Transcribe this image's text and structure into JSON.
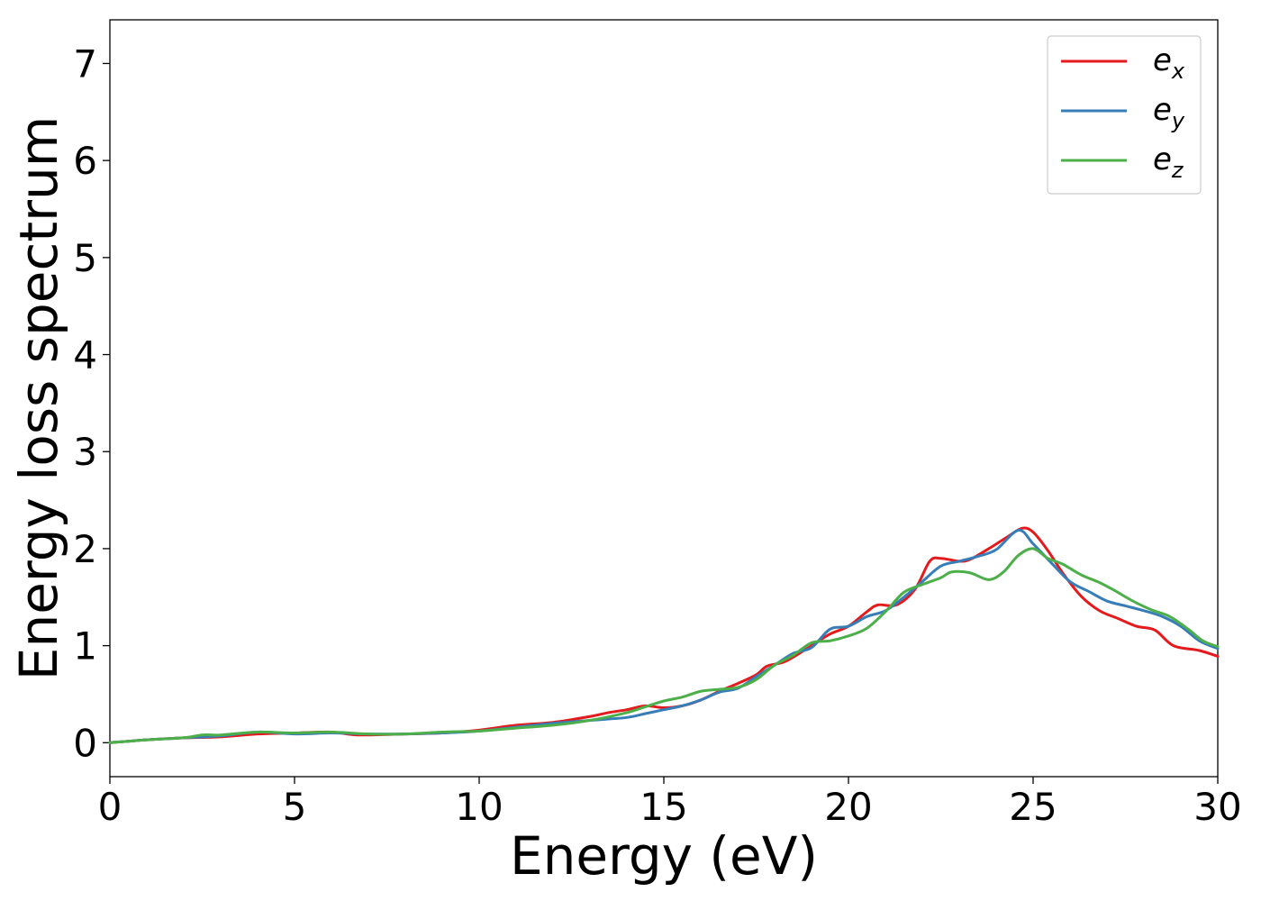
{
  "chart_data": {
    "type": "line",
    "title": "",
    "xlabel": "Energy (eV)",
    "ylabel": "Energy loss spectrum",
    "xlim": [
      0,
      30
    ],
    "ylim": [
      -0.35,
      7.45
    ],
    "xticks": [
      0,
      5,
      10,
      15,
      20,
      25,
      30
    ],
    "yticks": [
      0,
      1,
      2,
      3,
      4,
      5,
      6,
      7
    ],
    "grid": false,
    "legend_position": "top-right",
    "series": [
      {
        "name": "e_x",
        "label_base": "e",
        "label_sub": "x",
        "color": "#e41a1c",
        "points": [
          [
            0,
            0
          ],
          [
            1,
            0.03
          ],
          [
            2,
            0.05
          ],
          [
            3,
            0.06
          ],
          [
            4,
            0.09
          ],
          [
            5,
            0.1
          ],
          [
            6,
            0.11
          ],
          [
            6.7,
            0.08
          ],
          [
            8,
            0.09
          ],
          [
            9,
            0.1
          ],
          [
            10,
            0.13
          ],
          [
            11,
            0.18
          ],
          [
            12,
            0.21
          ],
          [
            13,
            0.27
          ],
          [
            13.5,
            0.31
          ],
          [
            14,
            0.34
          ],
          [
            14.5,
            0.38
          ],
          [
            15,
            0.36
          ],
          [
            15.5,
            0.38
          ],
          [
            16,
            0.44
          ],
          [
            16.5,
            0.53
          ],
          [
            17,
            0.61
          ],
          [
            17.5,
            0.7
          ],
          [
            17.8,
            0.79
          ],
          [
            18.3,
            0.84
          ],
          [
            19,
            1.0
          ],
          [
            19.5,
            1.12
          ],
          [
            20,
            1.2
          ],
          [
            20.5,
            1.35
          ],
          [
            20.8,
            1.42
          ],
          [
            21.3,
            1.42
          ],
          [
            21.8,
            1.58
          ],
          [
            22.2,
            1.87
          ],
          [
            22.5,
            1.9
          ],
          [
            23,
            1.87
          ],
          [
            23.3,
            1.89
          ],
          [
            23.8,
            2.0
          ],
          [
            24.3,
            2.12
          ],
          [
            24.7,
            2.21
          ],
          [
            25,
            2.17
          ],
          [
            25.4,
            1.98
          ],
          [
            25.8,
            1.75
          ],
          [
            26.3,
            1.51
          ],
          [
            26.8,
            1.36
          ],
          [
            27.3,
            1.28
          ],
          [
            27.8,
            1.2
          ],
          [
            28.3,
            1.16
          ],
          [
            28.8,
            1.0
          ],
          [
            29.5,
            0.95
          ],
          [
            30,
            0.89
          ]
        ]
      },
      {
        "name": "e_y",
        "label_base": "e",
        "label_sub": "y",
        "color": "#377eb8",
        "points": [
          [
            0,
            0
          ],
          [
            1,
            0.03
          ],
          [
            2,
            0.05
          ],
          [
            3,
            0.07
          ],
          [
            4,
            0.11
          ],
          [
            5,
            0.09
          ],
          [
            6,
            0.1
          ],
          [
            7,
            0.09
          ],
          [
            8,
            0.09
          ],
          [
            9,
            0.1
          ],
          [
            10,
            0.12
          ],
          [
            11,
            0.16
          ],
          [
            12,
            0.2
          ],
          [
            13,
            0.23
          ],
          [
            14,
            0.26
          ],
          [
            14.5,
            0.3
          ],
          [
            15,
            0.34
          ],
          [
            15.5,
            0.38
          ],
          [
            16,
            0.44
          ],
          [
            16.5,
            0.52
          ],
          [
            17,
            0.56
          ],
          [
            17.5,
            0.68
          ],
          [
            18,
            0.8
          ],
          [
            18.5,
            0.92
          ],
          [
            19,
            0.98
          ],
          [
            19.5,
            1.17
          ],
          [
            20,
            1.2
          ],
          [
            20.5,
            1.3
          ],
          [
            21,
            1.36
          ],
          [
            21.5,
            1.5
          ],
          [
            22,
            1.66
          ],
          [
            22.5,
            1.82
          ],
          [
            23,
            1.87
          ],
          [
            23.5,
            1.92
          ],
          [
            24,
            1.99
          ],
          [
            24.6,
            2.19
          ],
          [
            25,
            2.05
          ],
          [
            25.5,
            1.85
          ],
          [
            26,
            1.66
          ],
          [
            26.5,
            1.56
          ],
          [
            27,
            1.46
          ],
          [
            27.5,
            1.41
          ],
          [
            28,
            1.36
          ],
          [
            28.5,
            1.3
          ],
          [
            29,
            1.2
          ],
          [
            29.5,
            1.05
          ],
          [
            30,
            0.97
          ]
        ]
      },
      {
        "name": "e_z",
        "label_base": "e",
        "label_sub": "z",
        "color": "#4daf4a",
        "points": [
          [
            0,
            0
          ],
          [
            1,
            0.03
          ],
          [
            2,
            0.05
          ],
          [
            2.5,
            0.08
          ],
          [
            3,
            0.08
          ],
          [
            4,
            0.11
          ],
          [
            5,
            0.1
          ],
          [
            6,
            0.11
          ],
          [
            7,
            0.09
          ],
          [
            8,
            0.09
          ],
          [
            9,
            0.11
          ],
          [
            10,
            0.12
          ],
          [
            11,
            0.15
          ],
          [
            12,
            0.18
          ],
          [
            13,
            0.23
          ],
          [
            14,
            0.31
          ],
          [
            14.5,
            0.37
          ],
          [
            15,
            0.43
          ],
          [
            15.5,
            0.47
          ],
          [
            16,
            0.53
          ],
          [
            16.5,
            0.55
          ],
          [
            17,
            0.57
          ],
          [
            17.5,
            0.65
          ],
          [
            18,
            0.8
          ],
          [
            18.5,
            0.9
          ],
          [
            19,
            1.03
          ],
          [
            19.5,
            1.05
          ],
          [
            20,
            1.1
          ],
          [
            20.5,
            1.18
          ],
          [
            21,
            1.35
          ],
          [
            21.5,
            1.55
          ],
          [
            22,
            1.63
          ],
          [
            22.5,
            1.7
          ],
          [
            22.8,
            1.76
          ],
          [
            23.3,
            1.75
          ],
          [
            23.8,
            1.68
          ],
          [
            24.2,
            1.76
          ],
          [
            24.6,
            1.93
          ],
          [
            25,
            2.0
          ],
          [
            25.4,
            1.9
          ],
          [
            25.8,
            1.84
          ],
          [
            26.3,
            1.73
          ],
          [
            26.8,
            1.65
          ],
          [
            27.2,
            1.57
          ],
          [
            27.7,
            1.46
          ],
          [
            28.2,
            1.37
          ],
          [
            28.7,
            1.3
          ],
          [
            29.2,
            1.17
          ],
          [
            29.6,
            1.05
          ],
          [
            30,
            0.99
          ]
        ]
      }
    ]
  }
}
